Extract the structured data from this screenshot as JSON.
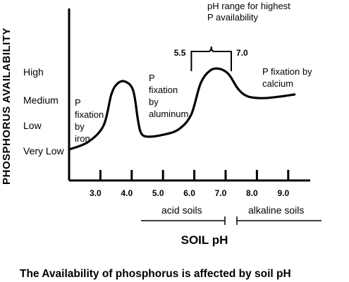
{
  "chart_data": {
    "type": "line",
    "title": "The Availability of phosphorus is affected by soil pH",
    "xlabel": "SOIL pH",
    "ylabel": "PHOSPHORUS AVAILABILITY",
    "xlim": [
      2.0,
      10.0
    ],
    "ylim": [
      0,
      4
    ],
    "x_ticks": [
      3.0,
      4.0,
      5.0,
      6.0,
      7.0,
      8.0,
      9.0
    ],
    "x_tick_labels": [
      "3.0",
      "4.0",
      "5.0",
      "6.0",
      "7.0",
      "8.0",
      "9.0"
    ],
    "y_levels": [
      "Very Low",
      "Low",
      "Medium",
      "High"
    ],
    "series": [
      {
        "x": [
          2.0,
          2.6,
          3.1,
          3.35,
          3.55,
          3.8,
          4.05,
          4.2,
          4.3,
          4.5,
          5.0,
          5.5,
          5.9,
          6.2,
          6.5,
          6.8,
          7.1,
          7.4,
          7.7,
          8.2,
          8.8,
          9.2
        ],
        "y": [
          1.0,
          1.2,
          1.65,
          2.5,
          2.8,
          2.85,
          2.6,
          1.8,
          1.45,
          1.35,
          1.4,
          1.55,
          1.95,
          2.8,
          3.15,
          3.2,
          3.05,
          2.65,
          2.45,
          2.4,
          2.45,
          2.5
        ]
      }
    ],
    "regions": [
      {
        "label": "acid soils",
        "x_range": [
          2.2,
          7.0
        ]
      },
      {
        "label": "alkaline soils",
        "x_range": [
          7.2,
          10.0
        ]
      }
    ],
    "optimal_range": {
      "low": "5.5",
      "high": "7.0",
      "lines": [
        "pH range for highest",
        "P availability"
      ]
    },
    "annotations": [
      {
        "lines": [
          "P",
          "fixation",
          "by",
          "iron"
        ]
      },
      {
        "lines": [
          "P",
          "fixation",
          "by",
          "aluminum"
        ]
      },
      {
        "lines": [
          "P fixation by",
          "calcium"
        ]
      }
    ]
  }
}
